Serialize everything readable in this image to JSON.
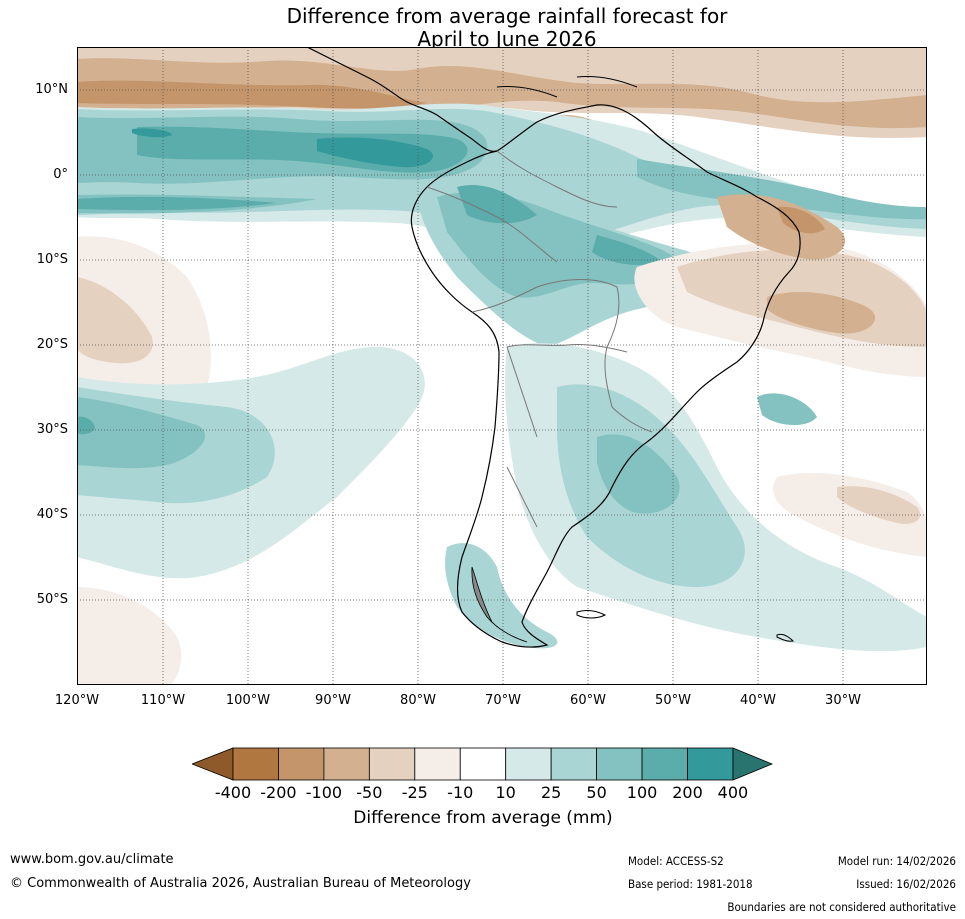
{
  "title": {
    "line1": "Difference from average rainfall forecast for",
    "line2": "April to June 2026"
  },
  "map": {
    "lat_labels": [
      "10°N",
      "0°",
      "10°S",
      "20°S",
      "30°S",
      "40°S",
      "50°S"
    ],
    "lon_labels": [
      "120°W",
      "110°W",
      "100°W",
      "90°W",
      "80°W",
      "70°W",
      "60°W",
      "50°W",
      "40°W",
      "30°W"
    ]
  },
  "colorbar": {
    "ticks": [
      "-400",
      "-200",
      "-100",
      "-50",
      "-25",
      "-10",
      "10",
      "25",
      "50",
      "100",
      "200",
      "400"
    ],
    "colors": [
      "#8e5a2a",
      "#b07740",
      "#c4956a",
      "#d3b08f",
      "#e5d1bf",
      "#f5ede8",
      "#ffffff",
      "#d5e9e8",
      "#a9d5d4",
      "#83c2c0",
      "#5aadaa",
      "#33999a",
      "#2a7470"
    ],
    "label": "Difference from average (mm)"
  },
  "footer": {
    "website": "www.bom.gov.au/climate",
    "copyright": "© Commonwealth of Australia 2026, Australian Bureau of Meteorology",
    "model": "Model: ACCESS-S2",
    "base_period": "Base period: 1981-2018",
    "model_run": "Model run: 14/02/2026",
    "issued": "Issued: 16/02/2026",
    "disclaimer": "Boundaries are not considered authoritative"
  }
}
